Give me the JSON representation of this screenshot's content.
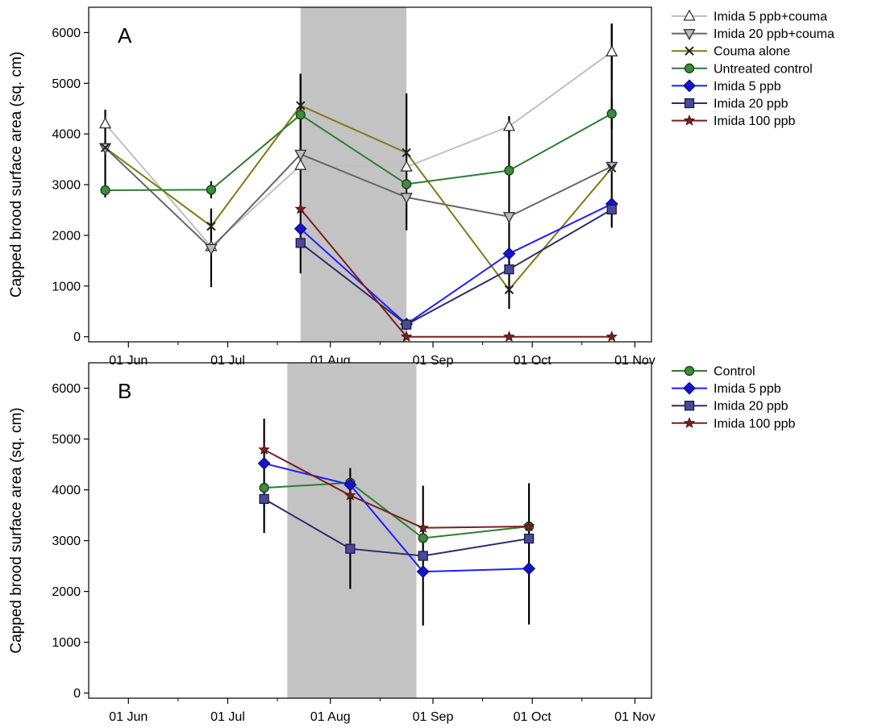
{
  "chart_data": [
    {
      "type": "line",
      "panel_label": "A",
      "ylabel": "Capped brood surface area (sq. cm)",
      "ylim": [
        -100,
        6500
      ],
      "yticks": [
        0,
        1000,
        2000,
        3000,
        4000,
        5000,
        6000
      ],
      "xlim": [
        "2012-05-20",
        "2012-11-06"
      ],
      "xticks": [
        {
          "date": "2012-06-01",
          "label": "01 Jun"
        },
        {
          "date": "2012-07-01",
          "label": "01 Jul"
        },
        {
          "date": "2012-08-01",
          "label": "01 Aug"
        },
        {
          "date": "2012-09-01",
          "label": "01 Sep"
        },
        {
          "date": "2012-10-01",
          "label": "01 Oct"
        },
        {
          "date": "2012-11-01",
          "label": "01 Nov"
        }
      ],
      "shaded_period": [
        "2012-07-23",
        "2012-08-24"
      ],
      "legend": "outside-right",
      "series": [
        {
          "name": "Imida 5 ppb+couma",
          "color": "#c0c0c0",
          "marker": "triangle-up",
          "markerFill": "#ffffff",
          "x": [
            "2012-05-25",
            "2012-06-26",
            "2012-07-23",
            "2012-08-24",
            "2012-09-24",
            "2012-10-25"
          ],
          "y": [
            4200,
            1780,
            3380,
            3350,
            4150,
            5620
          ],
          "err": [
            0,
            0,
            0,
            0,
            200,
            550
          ]
        },
        {
          "name": "Imida 20 ppb+couma",
          "color": "#666666",
          "marker": "triangle-down",
          "markerFill": "#bbbbbb",
          "x": [
            "2012-05-25",
            "2012-06-26",
            "2012-07-23",
            "2012-08-24",
            "2012-09-24",
            "2012-10-25"
          ],
          "y": [
            3730,
            1740,
            3600,
            2750,
            2370,
            3360
          ],
          "err": [
            0,
            0,
            0,
            0,
            0,
            0
          ]
        },
        {
          "name": "Couma alone",
          "color": "#7f7a14",
          "marker": "x",
          "markerFill": "none",
          "x": [
            "2012-05-25",
            "2012-06-26",
            "2012-07-23",
            "2012-08-24",
            "2012-09-24",
            "2012-10-25"
          ],
          "y": [
            3730,
            2180,
            4560,
            3630,
            930,
            3330
          ],
          "err": [
            0,
            350,
            0,
            0,
            0,
            0
          ]
        },
        {
          "name": "Untreated control",
          "color": "#2e7d32",
          "marker": "circle",
          "markerFill": "#3d8b3d",
          "x": [
            "2012-05-25",
            "2012-06-26",
            "2012-07-23",
            "2012-08-24",
            "2012-09-24",
            "2012-10-25"
          ],
          "y": [
            2890,
            2900,
            4380,
            3010,
            3280,
            4400
          ],
          "err": [
            0,
            170,
            810,
            0,
            0,
            300
          ]
        },
        {
          "name": "Imida 5 ppb",
          "color": "#1e1eff",
          "marker": "diamond",
          "markerFill": "#1515cc",
          "x": [
            "2012-07-23",
            "2012-08-24",
            "2012-09-24",
            "2012-10-25"
          ],
          "y": [
            2130,
            250,
            1640,
            2620
          ],
          "err": [
            0,
            0,
            0,
            0
          ]
        },
        {
          "name": "Imida 20 ppb",
          "color": "#2c2c6e",
          "marker": "square",
          "markerFill": "#4a4a99",
          "x": [
            "2012-07-23",
            "2012-08-24",
            "2012-09-24",
            "2012-10-25"
          ],
          "y": [
            1850,
            240,
            1330,
            2510
          ],
          "err": [
            0,
            0,
            0,
            0
          ]
        },
        {
          "name": "Imida 100 ppb",
          "color": "#7a1f1f",
          "marker": "star",
          "markerFill": "#7a1f1f",
          "x": [
            "2012-07-23",
            "2012-08-24",
            "2012-09-24",
            "2012-10-25"
          ],
          "y": [
            2520,
            0,
            0,
            0
          ],
          "err": [
            0,
            0,
            0,
            0
          ]
        }
      ],
      "error_bars": [
        {
          "x": "2012-05-25",
          "lo": 2750,
          "hi": 4480
        },
        {
          "x": "2012-06-26",
          "lo": 980,
          "hi": 2500
        },
        {
          "x": "2012-07-23",
          "lo": 1250,
          "hi": 5180
        },
        {
          "x": "2012-08-24",
          "lo": 2100,
          "hi": 4800
        },
        {
          "x": "2012-09-24",
          "lo": 550,
          "hi": 4350
        },
        {
          "x": "2012-10-25",
          "lo": 2150,
          "hi": 6180
        }
      ]
    },
    {
      "type": "line",
      "panel_label": "B",
      "ylabel": "Capped brood surface area (sq. cm)",
      "ylim": [
        -100,
        6500
      ],
      "yticks": [
        0,
        1000,
        2000,
        3000,
        4000,
        5000,
        6000
      ],
      "xlim": [
        "2012-05-20",
        "2012-11-06"
      ],
      "xticks": [
        {
          "date": "2012-06-01",
          "label": "01 Jun"
        },
        {
          "date": "2012-07-01",
          "label": "01 Jul"
        },
        {
          "date": "2012-08-01",
          "label": "01 Aug"
        },
        {
          "date": "2012-09-01",
          "label": "01 Sep"
        },
        {
          "date": "2012-10-01",
          "label": "01 Oct"
        },
        {
          "date": "2012-11-01",
          "label": "01 Nov"
        }
      ],
      "shaded_period": [
        "2012-07-19",
        "2012-08-27"
      ],
      "legend": "outside-right",
      "series": [
        {
          "name": "Control",
          "color": "#2e7d32",
          "marker": "circle",
          "markerFill": "#3d8b3d",
          "x": [
            "2012-07-12",
            "2012-08-07",
            "2012-08-29",
            "2012-09-30"
          ],
          "y": [
            4040,
            4140,
            3050,
            3280
          ],
          "err": [
            0,
            0,
            0,
            0
          ]
        },
        {
          "name": "Imida 5 ppb",
          "color": "#1e1eff",
          "marker": "diamond",
          "markerFill": "#1515cc",
          "x": [
            "2012-07-12",
            "2012-08-07",
            "2012-08-29",
            "2012-09-30"
          ],
          "y": [
            4520,
            4100,
            2390,
            2450
          ],
          "err": [
            0,
            0,
            0,
            0
          ]
        },
        {
          "name": "Imida 20 ppb",
          "color": "#2c2c6e",
          "marker": "square",
          "markerFill": "#4a4a99",
          "x": [
            "2012-07-12",
            "2012-08-07",
            "2012-08-29",
            "2012-09-30"
          ],
          "y": [
            3820,
            2840,
            2700,
            3040
          ],
          "err": [
            0,
            0,
            0,
            0
          ]
        },
        {
          "name": "Imida 100 ppb",
          "color": "#7a1f1f",
          "marker": "star",
          "markerFill": "#7a1f1f",
          "x": [
            "2012-07-12",
            "2012-08-07",
            "2012-08-29",
            "2012-09-30"
          ],
          "y": [
            4790,
            3890,
            3250,
            3280
          ],
          "err": [
            0,
            0,
            0,
            0
          ]
        }
      ],
      "error_bars": [
        {
          "x": "2012-07-12",
          "lo": 3150,
          "hi": 5400
        },
        {
          "x": "2012-08-07",
          "lo": 2050,
          "hi": 4430
        },
        {
          "x": "2012-08-29",
          "lo": 1330,
          "hi": 4080
        },
        {
          "x": "2012-09-30",
          "lo": 1350,
          "hi": 4130
        }
      ]
    }
  ]
}
